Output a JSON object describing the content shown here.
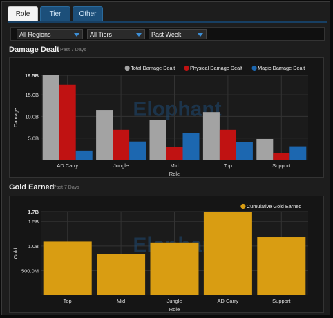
{
  "tabs": [
    {
      "label": "Role",
      "active": true
    },
    {
      "label": "Tier",
      "active": false
    },
    {
      "label": "Other",
      "active": false
    }
  ],
  "filters": [
    {
      "value": "All Regions"
    },
    {
      "value": "All Tiers"
    },
    {
      "value": "Past Week"
    }
  ],
  "sections": {
    "damage": {
      "title": "Damage Dealt",
      "subtitle": "Past 7 Days"
    },
    "gold": {
      "title": "Gold Earned",
      "subtitle": "Past 7 Days"
    }
  },
  "watermark": "Elophant",
  "colors": {
    "total": "#a3a3a3",
    "physical": "#c01212",
    "magic": "#1c67b0",
    "gold": "#d99d12",
    "accent": "#1c4f7a"
  },
  "chart_data": [
    {
      "type": "bar",
      "categories": [
        "AD Carry",
        "Jungle",
        "Mid",
        "Top",
        "Support"
      ],
      "series": [
        {
          "name": "Total Damage Dealt",
          "values": [
            19.5,
            11.5,
            9.2,
            11.0,
            4.8
          ]
        },
        {
          "name": "Physical Damage Dealt",
          "values": [
            17.3,
            6.9,
            3.0,
            6.9,
            1.5
          ]
        },
        {
          "name": "Magic Damage Dealt",
          "values": [
            2.1,
            4.2,
            6.2,
            4.0,
            3.1
          ]
        }
      ],
      "unit": "B",
      "xlabel": "Role",
      "ylabel": "Damage",
      "yticks": [
        "5.0B",
        "10.0B",
        "15.0B",
        "19.5B"
      ],
      "ytick_values": [
        5,
        10,
        15,
        19.5
      ],
      "ylim": [
        0,
        19.5
      ],
      "legend": "top-right",
      "grid": true
    },
    {
      "type": "bar",
      "categories": [
        "Top",
        "Mid",
        "Jungle",
        "AD Carry",
        "Support"
      ],
      "series": [
        {
          "name": "Cumulative Gold Earned",
          "values": [
            1.09,
            0.83,
            1.07,
            1.7,
            1.18
          ]
        }
      ],
      "unit": "B",
      "xlabel": "Role",
      "ylabel": "Gold",
      "yticks": [
        "500.0M",
        "1.0B",
        "1.5B",
        "1.7B"
      ],
      "ytick_values": [
        0.5,
        1.0,
        1.5,
        1.7
      ],
      "ylim": [
        0,
        1.7
      ],
      "legend": "top-right",
      "grid": true
    }
  ]
}
